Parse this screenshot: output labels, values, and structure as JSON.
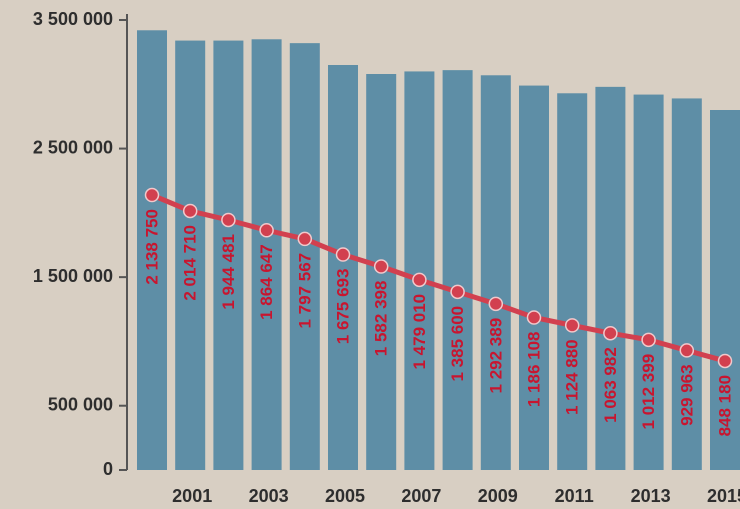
{
  "chart_data": {
    "type": "bar_line",
    "categories": [
      null,
      "2001",
      null,
      "2003",
      null,
      "2005",
      null,
      "2007",
      null,
      "2009",
      null,
      "2011",
      null,
      "2013",
      null,
      "2015"
    ],
    "series": [
      {
        "type": "bar",
        "color": "#5e8ea6",
        "values": [
          3420000,
          3340000,
          3340000,
          3350000,
          3320000,
          3150000,
          3080000,
          3100000,
          3110000,
          3070000,
          2990000,
          2930000,
          2980000,
          2920000,
          2890000,
          2800000
        ]
      },
      {
        "type": "line",
        "color": "#d2404f",
        "values": [
          2138750,
          2014710,
          1944481,
          1864647,
          1797567,
          1675693,
          1582398,
          1479010,
          1385600,
          1292389,
          1186108,
          1124880,
          1063982,
          1012399,
          929963,
          848180
        ],
        "value_labels": [
          "2 138 750",
          "2 014 710",
          "1 944 481",
          "1 864 647",
          "1 797 567",
          "1 675 693",
          "1 582 398",
          "1 479 010",
          "1 385 600",
          "1 292 389",
          "1 186 108",
          "1 124 880",
          "1 063 982",
          "1 012 399",
          "929 963",
          "848 180"
        ]
      }
    ],
    "ylim": [
      0,
      3500000
    ],
    "yticks": [
      0,
      {
        "value": 500000,
        "label": "500 000"
      },
      {
        "value": 1500000,
        "label": "1 500 000"
      },
      {
        "value": 2500000,
        "label": "2 500 000"
      },
      {
        "value": 3500000,
        "label": "3 500 000"
      }
    ]
  }
}
